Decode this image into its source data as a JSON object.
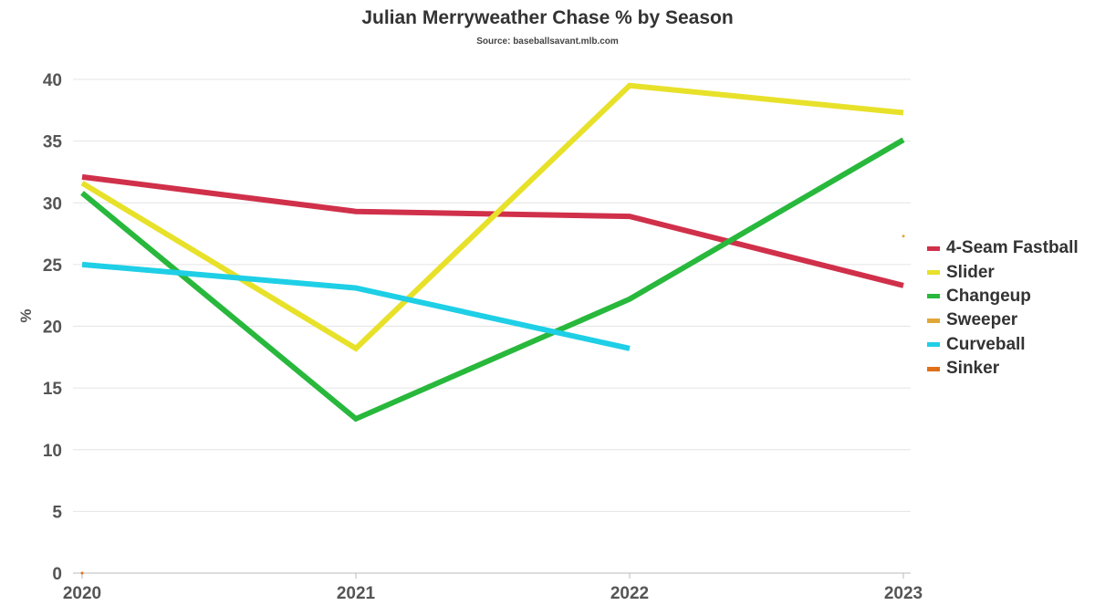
{
  "chart_data": {
    "type": "line",
    "title": "Julian Merryweather Chase % by Season",
    "subtitle": "Source: baseballsavant.mlb.com",
    "ylabel": "%",
    "xlabel": "",
    "categories": [
      "2020",
      "2021",
      "2022",
      "2023"
    ],
    "ylim": [
      0,
      40
    ],
    "yticks": [
      0,
      5,
      10,
      15,
      20,
      25,
      30,
      35,
      40
    ],
    "grid": true,
    "legend_position": "right",
    "series": [
      {
        "name": "4-Seam Fastball",
        "color": "#d0304a",
        "values": [
          32.1,
          29.3,
          28.9,
          23.3
        ]
      },
      {
        "name": "Slider",
        "color": "#e8e12a",
        "values": [
          31.6,
          18.2,
          39.5,
          37.3
        ]
      },
      {
        "name": "Changeup",
        "color": "#28b83c",
        "values": [
          30.8,
          12.5,
          22.2,
          35.1
        ]
      },
      {
        "name": "Sweeper",
        "color": "#e0a838",
        "values": [
          null,
          null,
          null,
          27.3
        ]
      },
      {
        "name": "Curveball",
        "color": "#1ecfe6",
        "values": [
          25.0,
          23.1,
          18.2,
          null
        ]
      },
      {
        "name": "Sinker",
        "color": "#e07018",
        "values": [
          0,
          null,
          null,
          null
        ]
      }
    ]
  }
}
